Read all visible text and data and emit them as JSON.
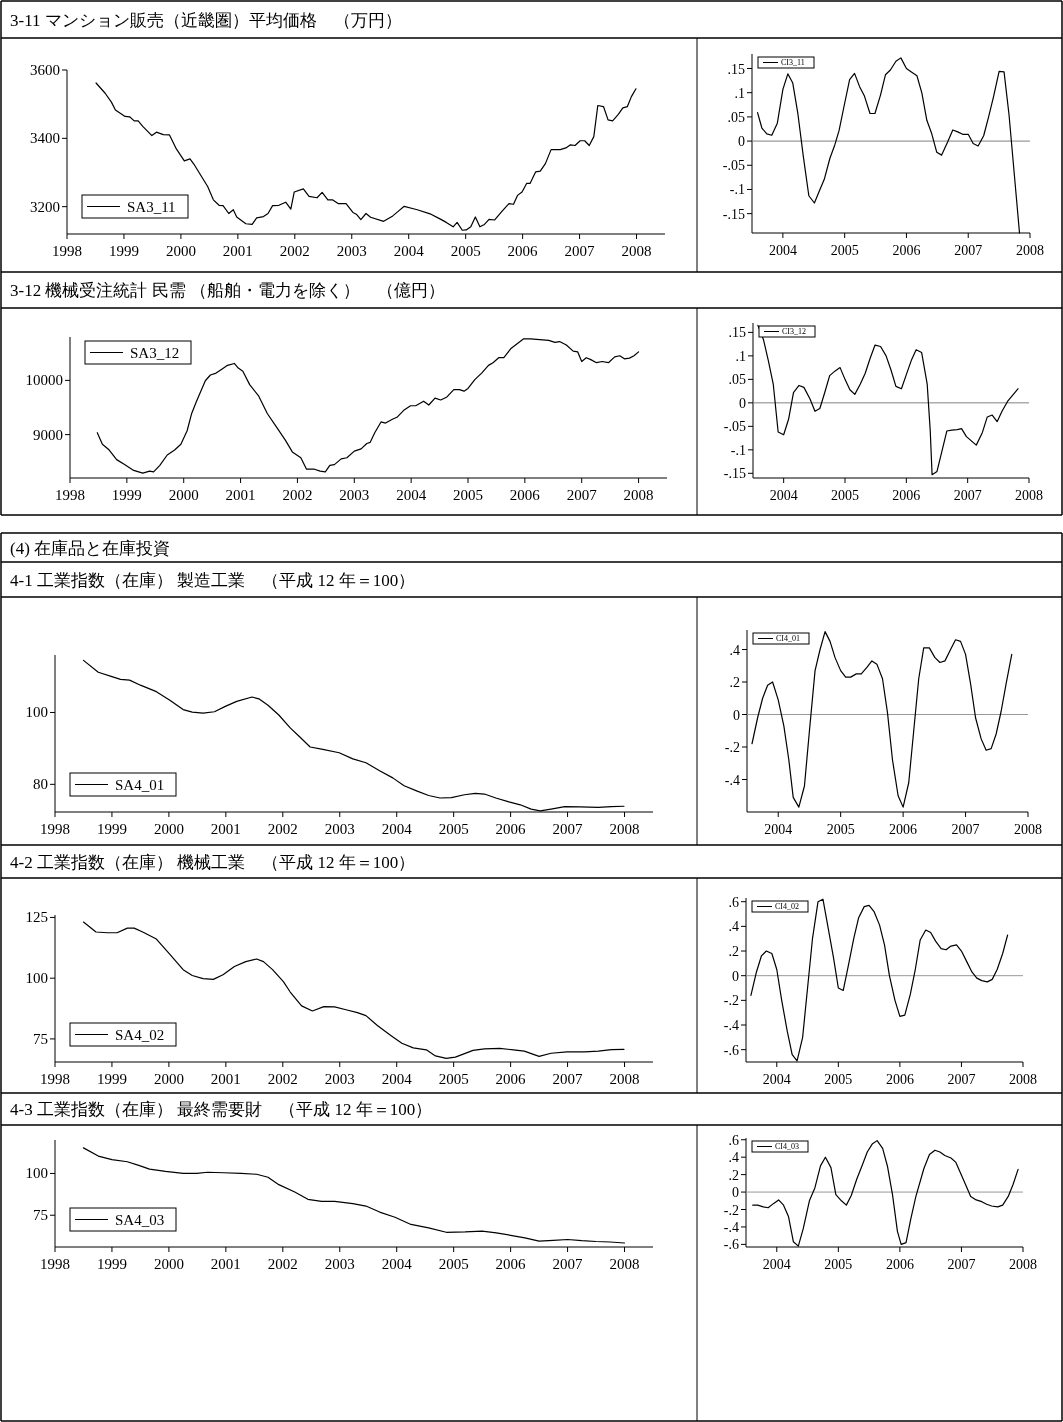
{
  "chart_data": [
    {
      "type": "line",
      "title": "3-11 マンション販売（近畿圏）平均価格　（万円）",
      "x": [
        1998.51,
        1998.67,
        1998.78,
        1998.85,
        1999.02,
        1999.1,
        1999.18,
        1999.25,
        1999.33,
        1999.49,
        1999.57,
        1999.69,
        1999.8,
        1999.92,
        2000.06,
        2000.16,
        2000.23,
        2000.34,
        2000.47,
        2000.57,
        2000.67,
        2000.74,
        2000.84,
        2000.92,
        2000.98,
        2001.14,
        2001.25,
        2001.33,
        2001.45,
        2001.53,
        2001.61,
        2001.72,
        2001.84,
        2001.93,
        2001.99,
        2002.15,
        2002.25,
        2002.39,
        2002.48,
        2002.58,
        2002.66,
        2002.76,
        2002.9,
        2003.02,
        2003.08,
        2003.16,
        2003.25,
        2003.33,
        2003.56,
        2003.72,
        2003.82,
        2003.92,
        2004.15,
        2004.39,
        2004.54,
        2004.66,
        2004.78,
        2004.85,
        2004.94,
        2005.01,
        2005.09,
        2005.17,
        2005.25,
        2005.33,
        2005.41,
        2005.51,
        2005.64,
        2005.76,
        2005.84,
        2005.91,
        2005.99,
        2006.07,
        2006.13,
        2006.23,
        2006.31,
        2006.4,
        2006.5,
        2006.66,
        2006.76,
        2006.84,
        2006.92,
        2007.01,
        2007.09,
        2007.17,
        2007.25,
        2007.32,
        2007.42,
        2007.5,
        2007.58,
        2007.68,
        2007.76,
        2007.84,
        2007.91,
        2007.99
      ],
      "series": [
        {
          "name": "SA3_11",
          "color": "#000000",
          "values": [
            3562,
            3532,
            3506,
            3483,
            3464,
            3463,
            3451,
            3451,
            3435,
            3408,
            3418,
            3411,
            3410,
            3369,
            3334,
            3340,
            3324,
            3294,
            3259,
            3220,
            3204,
            3203,
            3180,
            3191,
            3170,
            3150,
            3148,
            3167,
            3171,
            3180,
            3203,
            3204,
            3213,
            3193,
            3243,
            3252,
            3230,
            3226,
            3242,
            3220,
            3220,
            3209,
            3209,
            3183,
            3178,
            3162,
            3180,
            3169,
            3157,
            3173,
            3187,
            3201,
            3191,
            3178,
            3165,
            3154,
            3141,
            3154,
            3131,
            3132,
            3141,
            3170,
            3141,
            3148,
            3163,
            3161,
            3187,
            3209,
            3207,
            3233,
            3243,
            3268,
            3268,
            3302,
            3304,
            3326,
            3367,
            3367,
            3372,
            3381,
            3379,
            3393,
            3393,
            3379,
            3405,
            3496,
            3493,
            3454,
            3451,
            3470,
            3489,
            3493,
            3522,
            3545
          ]
        }
      ],
      "xlim": [
        1998,
        2008.5
      ],
      "xticks": [
        1998,
        1999,
        2000,
        2001,
        2002,
        2003,
        2004,
        2005,
        2006,
        2007,
        2008
      ],
      "ylim": [
        3120,
        3600
      ],
      "yticks": [
        3200,
        3400,
        3600
      ],
      "legend": "bottom left"
    },
    {
      "type": "line",
      "x": [
        2003.59,
        2003.66,
        2003.74,
        2003.82,
        2003.91,
        2004.0,
        2004.08,
        2004.16,
        2004.24,
        2004.33,
        2004.42,
        2004.51,
        2004.59,
        2004.67,
        2004.76,
        2004.84,
        2004.91,
        2004.99,
        2005.08,
        2005.16,
        2005.24,
        2005.32,
        2005.41,
        2005.49,
        2005.58,
        2005.66,
        2005.74,
        2005.83,
        2005.91,
        2006.0,
        2006.08,
        2006.17,
        2006.25,
        2006.33,
        2006.41,
        2006.49,
        2006.57,
        2006.67,
        2006.75,
        2006.83,
        2006.91,
        2007.0,
        2007.08,
        2007.16,
        2007.25,
        2007.33,
        2007.41,
        2007.5,
        2007.58,
        2007.66,
        2007.83
      ],
      "series": [
        {
          "name": "CI3_11",
          "color": "#000000",
          "values": [
            0.059,
            0.027,
            0.015,
            0.012,
            0.037,
            0.107,
            0.139,
            0.12,
            0.059,
            -0.031,
            -0.113,
            -0.128,
            -0.103,
            -0.079,
            -0.036,
            -0.008,
            0.022,
            0.072,
            0.127,
            0.14,
            0.113,
            0.093,
            0.057,
            0.057,
            0.095,
            0.137,
            0.147,
            0.165,
            0.172,
            0.15,
            0.143,
            0.135,
            0.099,
            0.043,
            0.015,
            -0.023,
            -0.029,
            -0.001,
            0.023,
            0.019,
            0.014,
            0.014,
            -0.005,
            -0.01,
            0.011,
            0.05,
            0.092,
            0.144,
            0.143,
            0.055,
            -0.19
          ]
        }
      ],
      "xlim": [
        2003.5,
        2008
      ],
      "xticks": [
        2004,
        2005,
        2006,
        2007,
        2008
      ],
      "ylim": [
        -0.19,
        0.18
      ],
      "yticks": [
        {
          "value": 0.15,
          "label": ".15"
        },
        {
          "value": 0.1,
          "label": ".1"
        },
        {
          "value": 0.05,
          "label": ".05"
        },
        0,
        {
          "value": -0.05,
          "label": "-.05"
        },
        {
          "value": -0.1,
          "label": "-.1"
        },
        {
          "value": -0.15,
          "label": "-.15"
        }
      ],
      "ref_lines": [
        {
          "axis": "y",
          "value": 0,
          "color": "#808080"
        }
      ],
      "legend": "top left"
    },
    {
      "type": "line",
      "title": "3-12 機械受注統計 民需 （船舶・電力を除く）　（億円）",
      "x": [
        1998.48,
        1998.57,
        1998.69,
        1998.82,
        1998.96,
        1999.12,
        1999.28,
        1999.4,
        1999.47,
        1999.58,
        1999.71,
        1999.84,
        1999.95,
        2000.06,
        2000.14,
        2000.22,
        2000.38,
        2000.47,
        2000.57,
        2000.67,
        2000.77,
        2000.89,
        2000.96,
        2001.04,
        2001.16,
        2001.32,
        2001.47,
        2001.63,
        2001.79,
        2001.91,
        2002.06,
        2002.16,
        2002.3,
        2002.4,
        2002.49,
        2002.57,
        2002.65,
        2002.77,
        2002.87,
        2003.0,
        2003.12,
        2003.22,
        2003.28,
        2003.36,
        2003.47,
        2003.55,
        2003.67,
        2003.75,
        2003.87,
        2003.99,
        2004.08,
        2004.22,
        2004.31,
        2004.42,
        2004.52,
        2004.63,
        2004.75,
        2004.85,
        2004.93,
        2005.0,
        2005.12,
        2005.24,
        2005.36,
        2005.44,
        2005.54,
        2005.63,
        2005.75,
        2005.87,
        2005.98,
        2006.1,
        2006.26,
        2006.42,
        2006.53,
        2006.61,
        2006.73,
        2006.85,
        2006.93,
        2007.0,
        2007.08,
        2007.16,
        2007.26,
        2007.36,
        2007.47,
        2007.58,
        2007.67,
        2007.75,
        2007.84,
        2007.92,
        2008.0
      ],
      "series": [
        {
          "name": "SA3_12",
          "color": "#000000",
          "values": [
            9035,
            8823,
            8716,
            8539,
            8447,
            8340,
            8291,
            8326,
            8312,
            8433,
            8624,
            8716,
            8823,
            9071,
            9390,
            9603,
            9993,
            10099,
            10135,
            10206,
            10277,
            10312,
            10227,
            10170,
            9922,
            9709,
            9390,
            9142,
            8894,
            8681,
            8574,
            8362,
            8362,
            8326,
            8312,
            8433,
            8447,
            8553,
            8574,
            8695,
            8738,
            8837,
            8858,
            9035,
            9234,
            9213,
            9284,
            9319,
            9447,
            9532,
            9532,
            9617,
            9546,
            9674,
            9638,
            9695,
            9830,
            9830,
            9801,
            9851,
            10014,
            10135,
            10277,
            10326,
            10418,
            10418,
            10582,
            10681,
            10766,
            10766,
            10752,
            10738,
            10702,
            10716,
            10652,
            10539,
            10525,
            10348,
            10418,
            10383,
            10326,
            10348,
            10326,
            10433,
            10454,
            10397,
            10411,
            10454,
            10525
          ]
        }
      ],
      "xlim": [
        1998,
        2008.5
      ],
      "xticks": [
        1998,
        1999,
        2000,
        2001,
        2002,
        2003,
        2004,
        2005,
        2006,
        2007,
        2008
      ],
      "ylim": [
        8200,
        10800
      ],
      "yticks": [
        9000,
        10000
      ],
      "legend": "top left"
    },
    {
      "type": "line",
      "x": [
        2003.58,
        2003.67,
        2003.75,
        2003.83,
        2003.91,
        2004.0,
        2004.08,
        2004.16,
        2004.25,
        2004.33,
        2004.43,
        2004.51,
        2004.59,
        2004.67,
        2004.75,
        2004.84,
        2004.92,
        2005.0,
        2005.08,
        2005.16,
        2005.25,
        2005.33,
        2005.41,
        2005.49,
        2005.58,
        2005.67,
        2005.75,
        2005.83,
        2005.92,
        2006.0,
        2006.08,
        2006.16,
        2006.25,
        2006.34,
        2006.39,
        2006.42,
        2006.5,
        2006.66,
        2006.74,
        2006.83,
        2006.9,
        2006.98,
        2007.14,
        2007.24,
        2007.32,
        2007.4,
        2007.48,
        2007.56,
        2007.65,
        2007.82
      ],
      "series": [
        {
          "name": "CI3_12",
          "color": "#000000",
          "values": [
            0.165,
            0.135,
            0.09,
            0.04,
            -0.062,
            -0.068,
            -0.035,
            0.022,
            0.037,
            0.033,
            0.008,
            -0.018,
            -0.012,
            0.022,
            0.058,
            0.068,
            0.075,
            0.05,
            0.028,
            0.018,
            0.04,
            0.063,
            0.095,
            0.123,
            0.12,
            0.1,
            0.07,
            0.035,
            0.03,
            0.06,
            0.09,
            0.113,
            0.107,
            0.04,
            -0.06,
            -0.153,
            -0.146,
            -0.06,
            -0.058,
            -0.057,
            -0.055,
            -0.072,
            -0.09,
            -0.063,
            -0.03,
            -0.026,
            -0.04,
            -0.018,
            0.003,
            0.03
          ]
        }
      ],
      "xlim": [
        2003.5,
        2008
      ],
      "xticks": [
        2004,
        2005,
        2006,
        2007,
        2008
      ],
      "ylim": [
        -0.16,
        0.17
      ],
      "yticks": [
        {
          "value": 0.15,
          "label": ".15"
        },
        {
          "value": 0.1,
          "label": ".1"
        },
        {
          "value": 0.05,
          "label": ".05"
        },
        0,
        {
          "value": -0.05,
          "label": "-.05"
        },
        {
          "value": -0.1,
          "label": "-.1"
        },
        {
          "value": -0.15,
          "label": "-.15"
        }
      ],
      "ref_lines": [
        {
          "axis": "y",
          "value": 0,
          "color": "#808080"
        }
      ],
      "legend": "top left"
    },
    {
      "type": "other",
      "title": "(4) 在庫品と在庫投資"
    },
    {
      "type": "line",
      "title": "4-1 工業指数（在庫） 製造工業　（平成 12 年＝100）",
      "x": [
        1998.5,
        1998.76,
        1999.0,
        1999.15,
        1999.31,
        1999.5,
        1999.78,
        2000.01,
        2000.25,
        2000.41,
        2000.6,
        2000.8,
        2000.99,
        2001.19,
        2001.46,
        2001.58,
        2001.74,
        2001.93,
        2002.13,
        2002.29,
        2002.48,
        2002.68,
        2002.99,
        2003.23,
        2003.46,
        2003.7,
        2003.93,
        2004.13,
        2004.36,
        2004.56,
        2004.76,
        2004.96,
        2005.19,
        2005.38,
        2005.54,
        2005.74,
        2005.97,
        2006.17,
        2006.36,
        2006.52,
        2006.71,
        2006.95,
        2007.22,
        2007.54,
        2007.77,
        2007.99
      ],
      "series": [
        {
          "name": "SA4_01",
          "color": "#000000",
          "values": [
            114.5,
            111.2,
            110.0,
            109.2,
            109.0,
            107.6,
            105.8,
            103.5,
            100.8,
            100.1,
            99.8,
            100.2,
            101.7,
            103.1,
            104.3,
            103.8,
            102.0,
            99.3,
            95.7,
            93.3,
            90.4,
            89.8,
            88.8,
            87.1,
            86.0,
            83.8,
            81.8,
            79.6,
            78.1,
            76.9,
            76.2,
            76.3,
            77.1,
            77.5,
            77.3,
            76.2,
            75.1,
            74.3,
            73.1,
            72.6,
            73.1,
            73.8,
            73.7,
            73.6,
            73.8,
            73.9
          ]
        }
      ],
      "xlim": [
        1998,
        2008.5
      ],
      "xticks": [
        1998,
        1999,
        2000,
        2001,
        2002,
        2003,
        2004,
        2005,
        2006,
        2007,
        2008
      ],
      "ylim": [
        72.3,
        116
      ],
      "yticks": [
        80,
        100
      ],
      "legend": "bottom left"
    },
    {
      "type": "line",
      "x": [
        2003.58,
        2003.67,
        2003.75,
        2003.83,
        2003.91,
        2004.0,
        2004.09,
        2004.17,
        2004.24,
        2004.33,
        2004.42,
        2004.5,
        2004.59,
        2004.67,
        2004.75,
        2004.83,
        2004.91,
        2005.0,
        2005.08,
        2005.16,
        2005.25,
        2005.33,
        2005.42,
        2005.5,
        2005.58,
        2005.67,
        2005.75,
        2005.83,
        2005.92,
        2006.0,
        2006.09,
        2006.17,
        2006.25,
        2006.33,
        2006.42,
        2006.51,
        2006.59,
        2006.67,
        2006.76,
        2006.84,
        2006.92,
        2007.0,
        2007.08,
        2007.16,
        2007.25,
        2007.33,
        2007.41,
        2007.49,
        2007.57,
        2007.65,
        2007.74
      ],
      "series": [
        {
          "name": "CI4_01",
          "color": "#000000",
          "values": [
            -0.18,
            -0.02,
            0.1,
            0.18,
            0.2,
            0.09,
            -0.07,
            -0.28,
            -0.51,
            -0.57,
            -0.44,
            -0.1,
            0.27,
            0.4,
            0.51,
            0.45,
            0.35,
            0.27,
            0.23,
            0.23,
            0.25,
            0.25,
            0.29,
            0.33,
            0.31,
            0.22,
            0.01,
            -0.28,
            -0.5,
            -0.57,
            -0.42,
            -0.1,
            0.22,
            0.41,
            0.41,
            0.35,
            0.32,
            0.33,
            0.4,
            0.46,
            0.45,
            0.37,
            0.19,
            -0.02,
            -0.15,
            -0.22,
            -0.21,
            -0.12,
            0.02,
            0.19,
            0.37
          ]
        }
      ],
      "xlim": [
        2003.5,
        2008
      ],
      "xticks": [
        2004,
        2005,
        2006,
        2007,
        2008
      ],
      "ylim": [
        -0.6,
        0.52
      ],
      "yticks": [
        {
          "value": 0.4,
          "label": ".4"
        },
        {
          "value": 0.2,
          "label": ".2"
        },
        0,
        {
          "value": -0.2,
          "label": "-.2"
        },
        {
          "value": -0.4,
          "label": "-.4"
        }
      ],
      "ref_lines": [
        {
          "axis": "y",
          "value": 0,
          "color": "#999999"
        }
      ],
      "legend": "top left"
    },
    {
      "type": "line",
      "title": "4-2 工業指数（在庫） 機械工業　（平成 12 年＝100）",
      "x": [
        1998.5,
        1998.72,
        1998.92,
        1999.09,
        1999.27,
        1999.39,
        1999.54,
        1999.78,
        2000.01,
        2000.25,
        2000.41,
        2000.6,
        2000.78,
        2000.95,
        2001.15,
        2001.35,
        2001.54,
        2001.66,
        2001.82,
        2002.01,
        2002.13,
        2002.33,
        2002.52,
        2002.72,
        2002.91,
        2003.11,
        2003.31,
        2003.46,
        2003.66,
        2003.89,
        2004.09,
        2004.29,
        2004.52,
        2004.68,
        2004.87,
        2005.03,
        2005.34,
        2005.54,
        2005.81,
        2006.05,
        2006.24,
        2006.5,
        2006.71,
        2006.99,
        2007.3,
        2007.54,
        2007.77,
        2007.99
      ],
      "series": [
        {
          "name": "SA4_02",
          "color": "#000000",
          "values": [
            123.1,
            119.0,
            118.7,
            118.7,
            120.6,
            120.6,
            119.0,
            116.1,
            110.0,
            103.5,
            101.1,
            99.8,
            99.5,
            101.4,
            104.8,
            106.8,
            107.9,
            106.8,
            103.5,
            98.6,
            94.3,
            88.6,
            86.5,
            88.3,
            88.2,
            87.0,
            85.8,
            84.6,
            80.5,
            76.5,
            73.2,
            71.3,
            70.5,
            68.0,
            67.0,
            67.5,
            70.3,
            70.9,
            71.1,
            70.5,
            70.0,
            67.8,
            69.1,
            69.7,
            69.7,
            70.0,
            70.6,
            70.7
          ]
        }
      ],
      "xlim": [
        1998,
        2008.5
      ],
      "xticks": [
        1998,
        1999,
        2000,
        2001,
        2002,
        2003,
        2004,
        2005,
        2006,
        2007,
        2008
      ],
      "ylim": [
        65.5,
        126
      ],
      "yticks": [
        75,
        100,
        125
      ],
      "legend": "bottom left"
    },
    {
      "type": "line",
      "x": [
        2003.58,
        2003.67,
        2003.75,
        2003.83,
        2003.92,
        2004.0,
        2004.08,
        2004.17,
        2004.25,
        2004.33,
        2004.42,
        2004.5,
        2004.58,
        2004.67,
        2004.75,
        2004.83,
        2004.92,
        2005.0,
        2005.08,
        2005.17,
        2005.25,
        2005.33,
        2005.42,
        2005.5,
        2005.58,
        2005.67,
        2005.75,
        2005.83,
        2005.92,
        2006.0,
        2006.08,
        2006.17,
        2006.25,
        2006.33,
        2006.42,
        2006.5,
        2006.58,
        2006.67,
        2006.75,
        2006.83,
        2006.92,
        2007.0,
        2007.08,
        2007.17,
        2007.25,
        2007.33,
        2007.42,
        2007.5,
        2007.58,
        2007.67,
        2007.75
      ],
      "series": [
        {
          "name": "CI4_02",
          "color": "#000000",
          "values": [
            -0.16,
            0.03,
            0.16,
            0.2,
            0.18,
            0.05,
            -0.2,
            -0.45,
            -0.64,
            -0.69,
            -0.5,
            -0.1,
            0.3,
            0.6,
            0.62,
            0.4,
            0.15,
            -0.1,
            -0.12,
            0.1,
            0.3,
            0.47,
            0.56,
            0.57,
            0.52,
            0.41,
            0.25,
            0.0,
            -0.2,
            -0.33,
            -0.32,
            -0.15,
            0.05,
            0.29,
            0.37,
            0.35,
            0.28,
            0.22,
            0.21,
            0.24,
            0.25,
            0.2,
            0.12,
            0.03,
            -0.02,
            -0.04,
            -0.05,
            -0.03,
            0.05,
            0.18,
            0.33
          ]
        }
      ],
      "xlim": [
        2003.5,
        2008
      ],
      "xticks": [
        2004,
        2005,
        2006,
        2007,
        2008
      ],
      "ylim": [
        -0.7,
        0.63
      ],
      "yticks": [
        {
          "value": 0.6,
          "label": ".6"
        },
        {
          "value": 0.4,
          "label": ".4"
        },
        {
          "value": 0.2,
          "label": ".2"
        },
        0,
        {
          "value": -0.2,
          "label": "-.2"
        },
        {
          "value": -0.4,
          "label": "-.4"
        },
        {
          "value": -0.6,
          "label": "-.6"
        }
      ],
      "ref_lines": [
        {
          "axis": "y",
          "value": 0,
          "color": "#999999"
        }
      ],
      "legend": "top left"
    },
    {
      "type": "line",
      "title": "4-3 工業指数（在庫） 最終需要財　（平成 12 年＝100）",
      "x": [
        1998.5,
        1998.76,
        1999.0,
        1999.27,
        1999.47,
        1999.66,
        1999.94,
        2000.25,
        2000.49,
        2000.68,
        2000.96,
        2001.27,
        2001.54,
        2001.74,
        2001.93,
        2002.21,
        2002.44,
        2002.68,
        2002.91,
        2003.23,
        2003.46,
        2003.7,
        2003.97,
        2004.25,
        2004.56,
        2004.87,
        2005.2,
        2005.5,
        2005.75,
        2006.0,
        2006.25,
        2006.5,
        2006.75,
        2007.0,
        2007.25,
        2007.5,
        2007.75,
        2008.0
      ],
      "series": [
        {
          "name": "SA4_03",
          "color": "#000000",
          "values": [
            115.3,
            110.4,
            108.3,
            107.0,
            104.8,
            102.6,
            101.2,
            100.0,
            100.0,
            100.7,
            100.4,
            100.0,
            99.5,
            97.7,
            93.3,
            88.9,
            84.5,
            83.3,
            83.3,
            81.9,
            80.5,
            76.9,
            73.8,
            69.5,
            67.4,
            64.8,
            65.0,
            65.5,
            64.5,
            63.0,
            61.5,
            59.5,
            60.0,
            60.5,
            59.8,
            59.3,
            59.0,
            58.4
          ]
        }
      ],
      "xlim": [
        1998,
        2008.5
      ],
      "xticks": [
        1998,
        1999,
        2000,
        2001,
        2002,
        2003,
        2004,
        2005,
        2006,
        2007,
        2008
      ],
      "ylim": [
        56,
        120
      ],
      "yticks": [
        75,
        100
      ],
      "legend": "bottom left"
    },
    {
      "type": "line",
      "x": [
        2003.61,
        2003.69,
        2003.78,
        2003.86,
        2003.95,
        2004.03,
        2004.11,
        2004.19,
        2004.27,
        2004.35,
        2004.43,
        2004.53,
        2004.62,
        2004.71,
        2004.79,
        2004.88,
        2004.96,
        2005.05,
        2005.13,
        2005.21,
        2005.3,
        2005.39,
        2005.47,
        2005.55,
        2005.63,
        2005.72,
        2005.8,
        2005.88,
        2005.96,
        2006.02,
        2006.1,
        2006.18,
        2006.26,
        2006.39,
        2006.48,
        2006.57,
        2006.65,
        2006.73,
        2006.83,
        2006.91,
        2006.99,
        2007.07,
        2007.15,
        2007.24,
        2007.33,
        2007.41,
        2007.49,
        2007.59,
        2007.67,
        2007.76,
        2007.84,
        2007.92
      ],
      "series": [
        {
          "name": "CI4_03",
          "color": "#000000",
          "values": [
            -0.15,
            -0.15,
            -0.17,
            -0.18,
            -0.13,
            -0.09,
            -0.15,
            -0.28,
            -0.57,
            -0.62,
            -0.42,
            -0.1,
            0.05,
            0.3,
            0.4,
            0.28,
            -0.03,
            -0.1,
            -0.15,
            -0.04,
            0.15,
            0.31,
            0.46,
            0.55,
            0.59,
            0.5,
            0.29,
            -0.03,
            -0.45,
            -0.6,
            -0.58,
            -0.3,
            -0.05,
            0.27,
            0.43,
            0.48,
            0.46,
            0.42,
            0.39,
            0.34,
            0.21,
            0.08,
            -0.05,
            -0.09,
            -0.11,
            -0.14,
            -0.16,
            -0.17,
            -0.15,
            -0.05,
            0.09,
            0.26
          ]
        }
      ],
      "xlim": [
        2003.5,
        2008
      ],
      "xticks": [
        2004,
        2005,
        2006,
        2007,
        2008
      ],
      "ylim": [
        -0.63,
        0.62
      ],
      "yticks": [
        {
          "value": 0.6,
          "label": ".6"
        },
        {
          "value": 0.4,
          "label": ".4"
        },
        {
          "value": 0.2,
          "label": ".2"
        },
        0,
        {
          "value": -0.2,
          "label": "-.2"
        },
        {
          "value": -0.4,
          "label": "-.4"
        },
        {
          "value": -0.6,
          "label": "-.6"
        }
      ],
      "ref_lines": [
        {
          "axis": "y",
          "value": 0,
          "color": "#999999"
        }
      ],
      "legend": "top left"
    }
  ]
}
